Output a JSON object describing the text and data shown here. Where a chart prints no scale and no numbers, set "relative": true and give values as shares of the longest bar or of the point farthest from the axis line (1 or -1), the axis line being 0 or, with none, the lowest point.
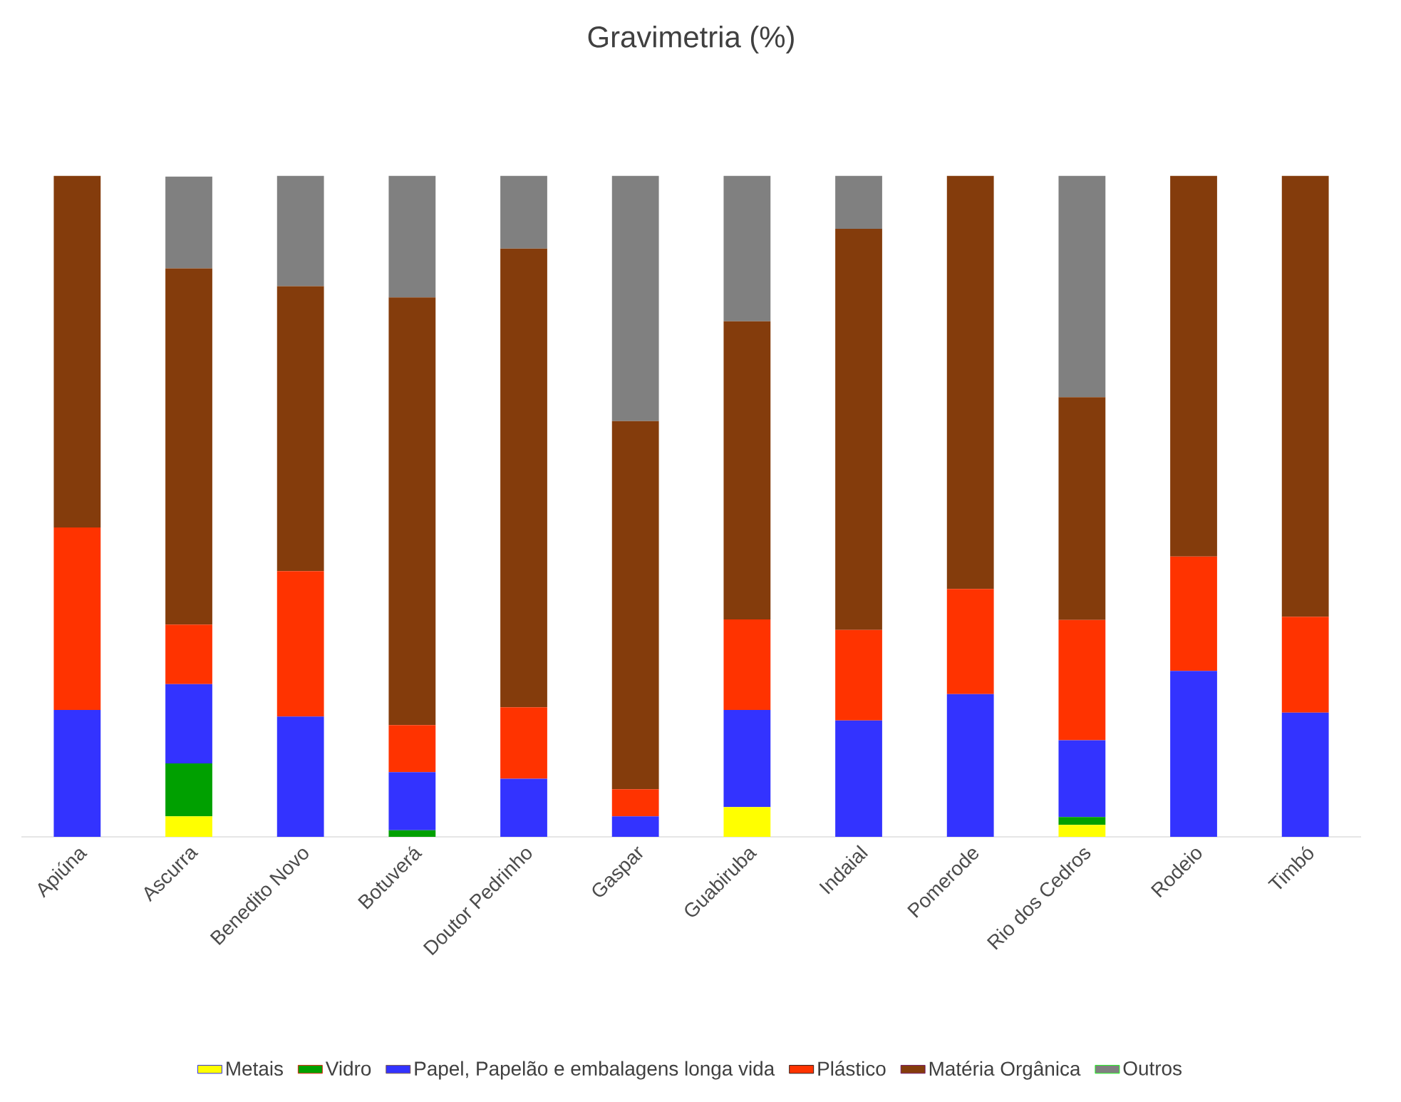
{
  "chart_data": {
    "type": "bar",
    "title": "Gravimetria (%)",
    "stacked": true,
    "relative": true,
    "legend": "bottom",
    "grid": false,
    "categories": [
      "Apiúna",
      "Ascurra",
      "Benedito Novo",
      "Botuverá",
      "Doutor Pedrinho",
      "Gaspar",
      "Guabiruba",
      "Indaial",
      "Pomerode",
      "Rio dos Cedros",
      "Rodeio",
      "Timbó"
    ],
    "series": [
      {
        "name": "Metais",
        "color": "#ffff00",
        "values": [
          0,
          0.031,
          0,
          0,
          0,
          0,
          0.045,
          0,
          0,
          0.018,
          0,
          0
        ]
      },
      {
        "name": "Vidro",
        "color": "#00a000",
        "values": [
          0,
          0.08,
          0,
          0.01,
          0,
          0,
          0,
          0,
          0,
          0.012,
          0,
          0
        ]
      },
      {
        "name": "Papel, Papelão e embalagens longa vida",
        "color": "#3333ff",
        "values": [
          0.192,
          0.12,
          0.182,
          0.088,
          0.088,
          0.031,
          0.147,
          0.176,
          0.216,
          0.116,
          0.251,
          0.188
        ]
      },
      {
        "name": "Plástico",
        "color": "#ff3300",
        "values": [
          0.276,
          0.09,
          0.22,
          0.071,
          0.108,
          0.041,
          0.137,
          0.137,
          0.159,
          0.182,
          0.173,
          0.145
        ]
      },
      {
        "name": "Matéria Orgânica",
        "color": "#843c0c",
        "values": [
          0.532,
          0.539,
          0.431,
          0.647,
          0.694,
          0.557,
          0.451,
          0.607,
          0.625,
          0.337,
          0.576,
          0.667
        ]
      },
      {
        "name": "Outros",
        "color": "#808080",
        "values": [
          0,
          0.139,
          0.167,
          0.184,
          0.11,
          0.371,
          0.22,
          0.08,
          0,
          0.335,
          0,
          0
        ]
      }
    ]
  }
}
